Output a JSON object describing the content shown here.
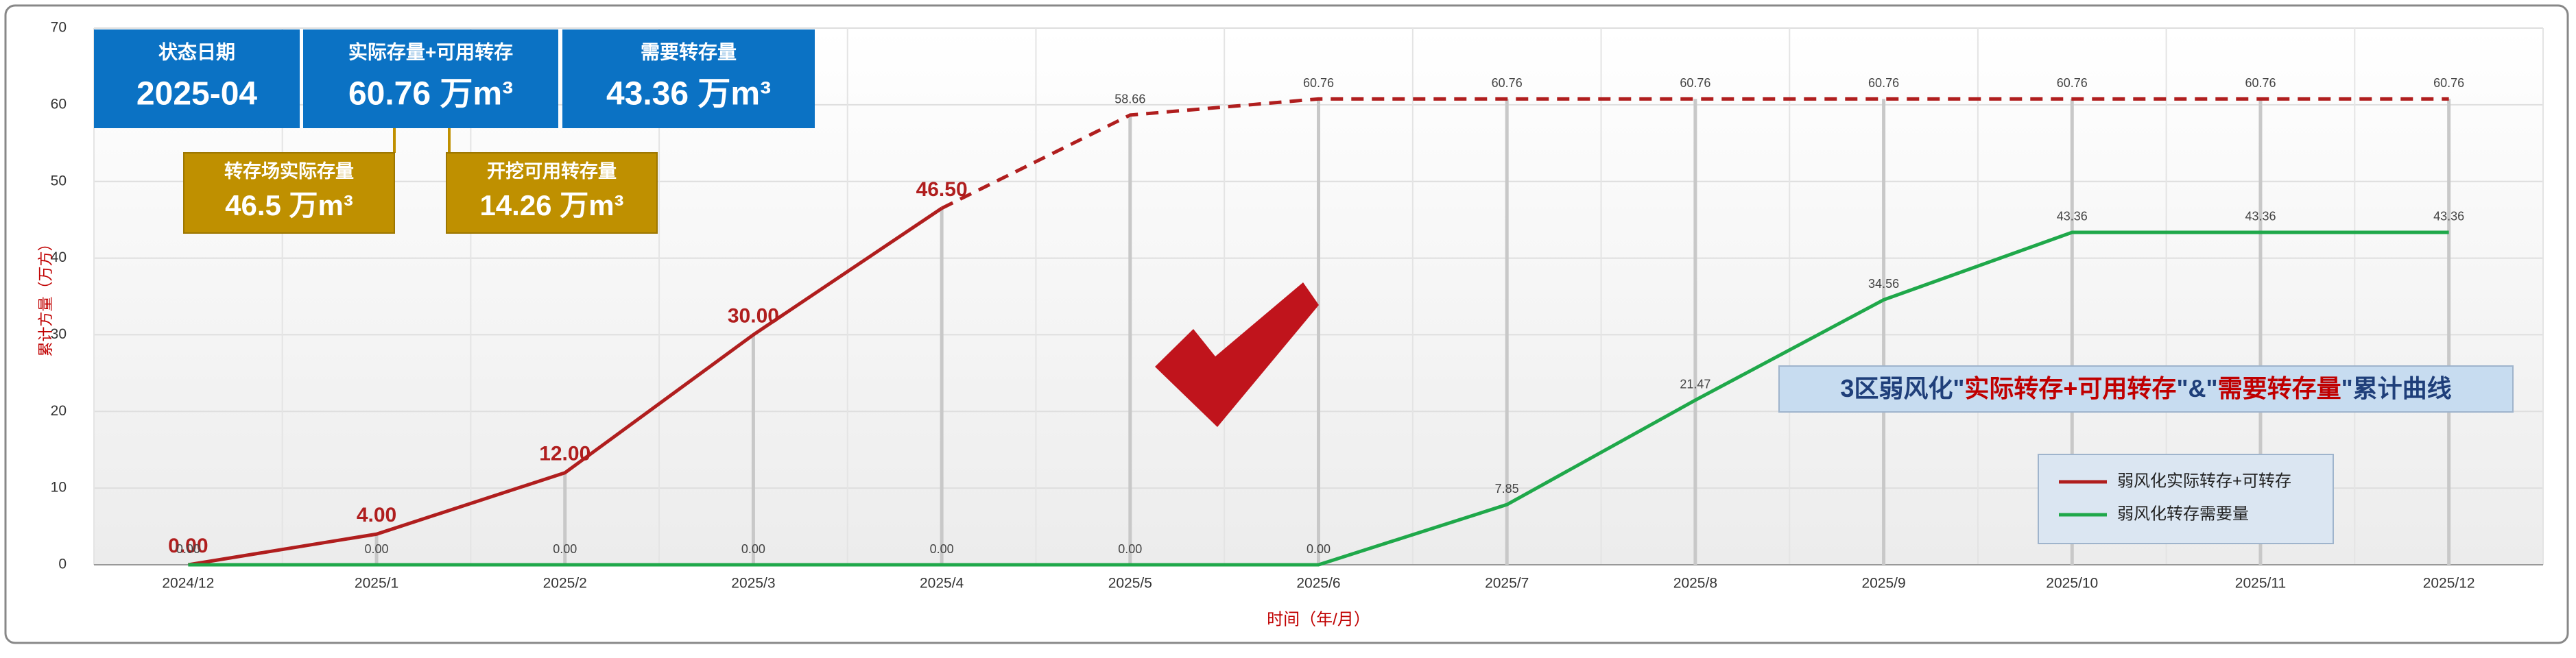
{
  "chart_data": {
    "type": "line",
    "title_segments": [
      {
        "text": "3区弱风化\"",
        "color": "#1f3f7a"
      },
      {
        "text": "实际转存+可用转存",
        "color": "#c00000"
      },
      {
        "text": "\"&\"",
        "color": "#1f3f7a"
      },
      {
        "text": "需要转存量",
        "color": "#c00000"
      },
      {
        "text": "\"累计曲线",
        "color": "#1f3f7a"
      }
    ],
    "xlabel": "时间（年/月）",
    "ylabel": "累计方量（万方）",
    "categories": [
      "2024/12",
      "2025/1",
      "2025/2",
      "2025/3",
      "2025/4",
      "2025/5",
      "2025/6",
      "2025/7",
      "2025/8",
      "2025/9",
      "2025/10",
      "2025/11",
      "2025/12"
    ],
    "series": [
      {
        "name": "弱风化实际转存+可转存",
        "color": "#b01e1e",
        "dashed_from": 4,
        "values": [
          0,
          4,
          12,
          30,
          46.5,
          58.66,
          60.76,
          60.76,
          60.76,
          60.76,
          60.76,
          60.76,
          60.76
        ],
        "value_labels": [
          "0.00",
          "4.00",
          "12.00",
          "30.00",
          "46.50",
          "58.66",
          "60.76",
          "60.76",
          "60.76",
          "60.76",
          "60.76",
          "60.76",
          "60.76"
        ]
      },
      {
        "name": "弱风化转存需要量",
        "color": "#1fa84a",
        "values": [
          0,
          0,
          0,
          0,
          0,
          0,
          0,
          7.85,
          21.47,
          34.56,
          43.36,
          43.36,
          43.36
        ],
        "value_labels": [
          "0.00",
          "0.00",
          "0.00",
          "0.00",
          "0.00",
          "0.00",
          "0.00",
          "7.85",
          "21.47",
          "34.56",
          "43.36",
          "43.36",
          "43.36"
        ]
      }
    ],
    "ylim": [
      0,
      70
    ],
    "yticks": [
      0,
      10,
      20,
      30,
      40,
      50,
      60,
      70
    ],
    "grid": true,
    "legend": "lower right",
    "info_boxes": [
      {
        "label": "状态日期",
        "value": "2025-04"
      },
      {
        "label": "实际存量+可用转存",
        "value": "60.76 万m³"
      },
      {
        "label": "需要转存量",
        "value": "43.36 万m³"
      }
    ],
    "sub_boxes": [
      {
        "label": "转存场实际存量",
        "value": "46.5 万m³"
      },
      {
        "label": "开挖可用转存量",
        "value": "14.26 万m³"
      }
    ]
  }
}
